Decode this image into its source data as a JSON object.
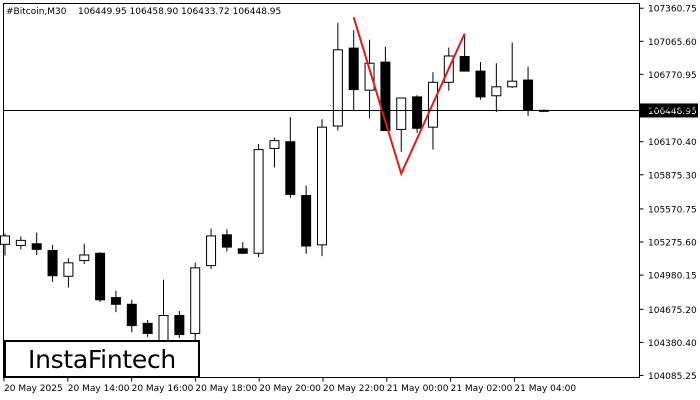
{
  "header": {
    "symbol": "#Bitcoin,M30",
    "ohlc": "106449.95 106458.90 106433.72 106448.95"
  },
  "logo": {
    "text": "InstaFintech"
  },
  "colors": {
    "bull_fill": "#ffffff",
    "bear_fill": "#000000",
    "candle_outline": "#000000",
    "pattern_line": "#dd1c1c",
    "price_line": "#000000",
    "grid": "none"
  },
  "chart_data": {
    "type": "candlestick",
    "title": "#Bitcoin,M30",
    "current_price": 106448.95,
    "current_price_label": "106448.95",
    "ylim": [
      104067,
      107403
    ],
    "x_tick_labels": [
      "20 May 2025",
      "20 May 14:00",
      "20 May 16:00",
      "20 May 18:00",
      "20 May 20:00",
      "20 May 22:00",
      "21 May 00:00",
      "21 May 02:00",
      "21 May 04:00"
    ],
    "y_tick_labels": [
      "107360.75",
      "107065.60",
      "106770.95",
      "106475.80",
      "106170.40",
      "105875.30",
      "105570.75",
      "105275.60",
      "104980.15",
      "104675.20",
      "104380.40",
      "104085.25"
    ],
    "candles": [
      {
        "o": 105255,
        "h": 105350,
        "l": 105155,
        "c": 105330
      },
      {
        "o": 105245,
        "h": 105325,
        "l": 105210,
        "c": 105290
      },
      {
        "o": 105260,
        "h": 105360,
        "l": 105160,
        "c": 105210
      },
      {
        "o": 105200,
        "h": 105250,
        "l": 104920,
        "c": 104975
      },
      {
        "o": 104970,
        "h": 105130,
        "l": 104870,
        "c": 105090
      },
      {
        "o": 105110,
        "h": 105260,
        "l": 105080,
        "c": 105160
      },
      {
        "o": 105175,
        "h": 105185,
        "l": 104740,
        "c": 104760
      },
      {
        "o": 104780,
        "h": 104840,
        "l": 104650,
        "c": 104720
      },
      {
        "o": 104720,
        "h": 104760,
        "l": 104470,
        "c": 104530
      },
      {
        "o": 104550,
        "h": 104580,
        "l": 104430,
        "c": 104460
      },
      {
        "o": 104360,
        "h": 104940,
        "l": 104180,
        "c": 104620
      },
      {
        "o": 104620,
        "h": 104660,
        "l": 104420,
        "c": 104450
      },
      {
        "o": 104460,
        "h": 105090,
        "l": 104370,
        "c": 105045
      },
      {
        "o": 105065,
        "h": 105395,
        "l": 105035,
        "c": 105330
      },
      {
        "o": 105340,
        "h": 105390,
        "l": 105190,
        "c": 105230
      },
      {
        "o": 105215,
        "h": 105275,
        "l": 105170,
        "c": 105175
      },
      {
        "o": 105175,
        "h": 106150,
        "l": 105140,
        "c": 106100
      },
      {
        "o": 106110,
        "h": 106205,
        "l": 105940,
        "c": 106180
      },
      {
        "o": 106170,
        "h": 106390,
        "l": 105670,
        "c": 105700
      },
      {
        "o": 105690,
        "h": 105780,
        "l": 105170,
        "c": 105240
      },
      {
        "o": 105250,
        "h": 106370,
        "l": 105150,
        "c": 106300
      },
      {
        "o": 106310,
        "h": 107230,
        "l": 106270,
        "c": 106990
      },
      {
        "o": 107005,
        "h": 107165,
        "l": 106445,
        "c": 106635
      },
      {
        "o": 106630,
        "h": 107080,
        "l": 106380,
        "c": 106870
      },
      {
        "o": 106880,
        "h": 107015,
        "l": 106280,
        "c": 106270
      },
      {
        "o": 106280,
        "h": 106555,
        "l": 106080,
        "c": 106560
      },
      {
        "o": 106570,
        "h": 106585,
        "l": 106250,
        "c": 106290
      },
      {
        "o": 106300,
        "h": 106790,
        "l": 106100,
        "c": 106700
      },
      {
        "o": 106700,
        "h": 107010,
        "l": 106625,
        "c": 106935
      },
      {
        "o": 106930,
        "h": 107120,
        "l": 106830,
        "c": 106800
      },
      {
        "o": 106800,
        "h": 106880,
        "l": 106545,
        "c": 106570
      },
      {
        "o": 106580,
        "h": 106870,
        "l": 106435,
        "c": 106660
      },
      {
        "o": 106660,
        "h": 107055,
        "l": 106650,
        "c": 106710
      },
      {
        "o": 106720,
        "h": 106840,
        "l": 106400,
        "c": 106450
      },
      {
        "o": 106449.95,
        "h": 106458.9,
        "l": 106433.72,
        "c": 106448.95
      }
    ],
    "pattern": {
      "name": "Double Top",
      "points": [
        {
          "candle": 22,
          "price": 107280
        },
        {
          "candle": 25,
          "price": 105885
        },
        {
          "candle": 29,
          "price": 107135
        }
      ]
    }
  }
}
